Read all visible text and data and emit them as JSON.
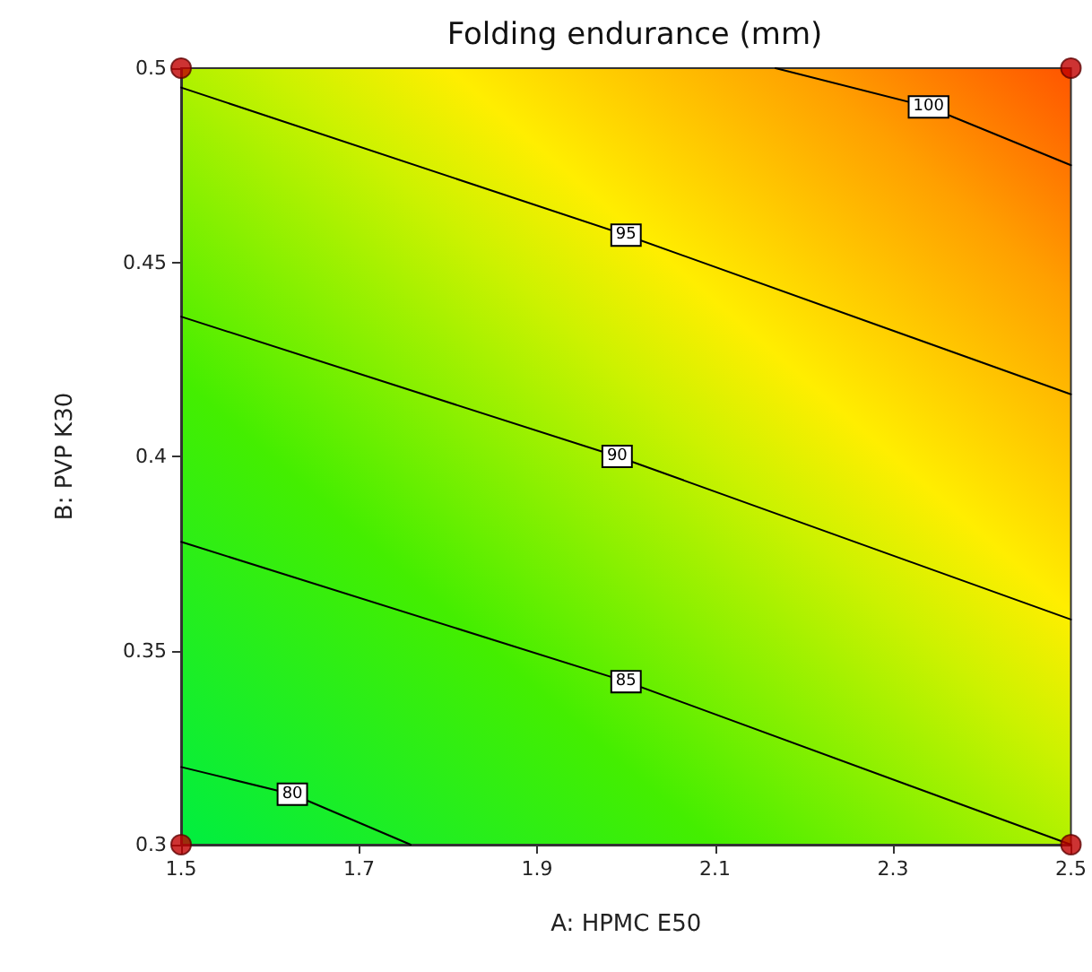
{
  "chart_data": {
    "type": "line",
    "title": "Folding endurance (mm)",
    "xlabel": "A: HPMC E50",
    "ylabel": "B: PVP K30",
    "xlim": [
      1.5,
      2.5
    ],
    "ylim": [
      0.3,
      0.5
    ],
    "xticks": [
      1.5,
      1.7,
      1.9,
      2.1,
      2.3,
      2.5
    ],
    "yticks": [
      0.3,
      0.35,
      0.4,
      0.45,
      0.5
    ],
    "grid": false,
    "legend": false,
    "series": [
      {
        "name": "80",
        "color": "#000000",
        "x": [
          1.5,
          1.625,
          1.758
        ],
        "values": [
          0.32,
          0.313,
          0.3
        ]
      },
      {
        "name": "85",
        "color": "#000000",
        "x": [
          1.5,
          2.0,
          2.5
        ],
        "values": [
          0.378,
          0.342,
          0.3
        ]
      },
      {
        "name": "90",
        "color": "#000000",
        "x": [
          1.5,
          1.99,
          2.5
        ],
        "values": [
          0.436,
          0.4,
          0.358
        ]
      },
      {
        "name": "95",
        "color": "#000000",
        "x": [
          1.5,
          2.0,
          2.5
        ],
        "values": [
          0.495,
          0.457,
          0.416
        ]
      },
      {
        "name": "100",
        "color": "#000000",
        "x": [
          2.168,
          2.34,
          2.5
        ],
        "values": [
          0.5,
          0.49,
          0.475
        ]
      },
      {
        "type": "scatter",
        "color": "#c00000",
        "marker": "circle",
        "x": [
          1.5,
          1.5,
          2.5,
          2.5
        ],
        "values": [
          0.3,
          0.5,
          0.3,
          0.5
        ]
      }
    ]
  }
}
